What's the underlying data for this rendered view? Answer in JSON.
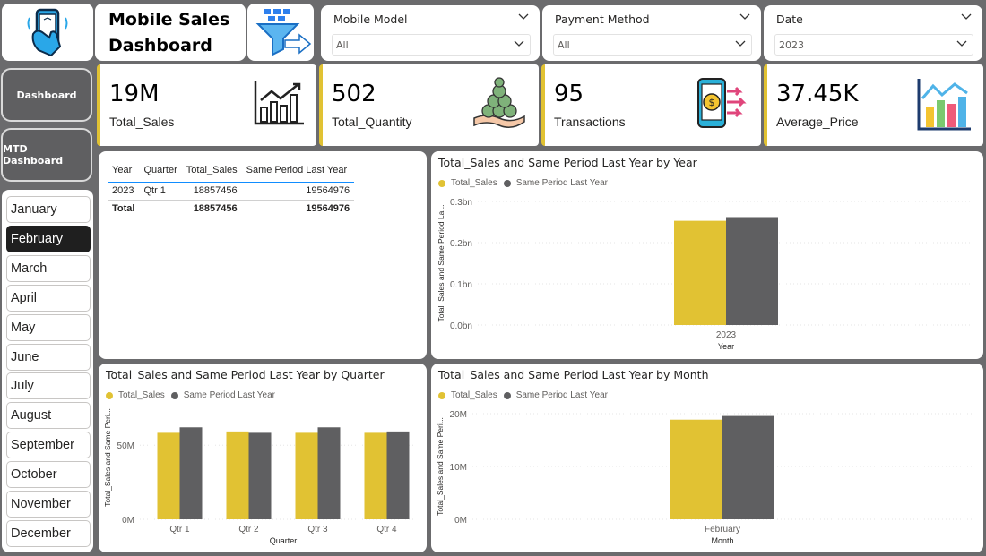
{
  "header": {
    "title_line1": "Mobile Sales",
    "title_line2": "Dashboard"
  },
  "icons": {
    "logo": "mobile-phone-hand-icon",
    "filter": "funnel-filter-icon"
  },
  "slicers": [
    {
      "title": "Mobile Model",
      "value": "All"
    },
    {
      "title": "Payment Method",
      "value": "All"
    },
    {
      "title": "Date",
      "value": "2023"
    }
  ],
  "nav": {
    "dashboard": "Dashboard",
    "mtd": "MTD Dashboard"
  },
  "months": [
    "January",
    "February",
    "March",
    "April",
    "May",
    "June",
    "July",
    "August",
    "September",
    "October",
    "November",
    "December"
  ],
  "selected_month": "February",
  "kpis": [
    {
      "value": "19M",
      "label": "Total_Sales",
      "icon": "bar-chart-up-icon"
    },
    {
      "value": "502",
      "label": "Total_Quantity",
      "icon": "coins-hand-icon"
    },
    {
      "value": "95",
      "label": "Transactions",
      "icon": "phone-payment-icon"
    },
    {
      "value": "37.45K",
      "label": "Average_Price",
      "icon": "colored-bar-chart-icon"
    }
  ],
  "table": {
    "headers": [
      "Year",
      "Quarter",
      "Total_Sales",
      "Same Period Last Year"
    ],
    "rows": [
      [
        "2023",
        "Qtr 1",
        "18857456",
        "19564976"
      ]
    ],
    "total": [
      "Total",
      "",
      "18857456",
      "19564976"
    ]
  },
  "colors": {
    "total_sales": "#e1c233",
    "same_period": "#5f5f61",
    "accent_line": "#118dff"
  },
  "charts": {
    "by_year": {
      "title": "Total_Sales and Same Period Last Year by Year",
      "legend": [
        "Total_Sales",
        "Same Period Last Year"
      ],
      "ylabel": "Total_Sales and Same Period La...",
      "xlabel": "Year",
      "yticks": [
        "0.3bn",
        "0.2bn",
        "0.1bn",
        "0.0bn"
      ]
    },
    "by_quarter": {
      "title": "Total_Sales and Same Period Last Year by Quarter",
      "legend": [
        "Total_Sales",
        "Same Period Last Year"
      ],
      "ylabel": "Total_Sales and Same Peri...",
      "xlabel": "Quarter",
      "yticks": [
        "50M",
        "0M"
      ]
    },
    "by_month": {
      "title": "Total_Sales and Same Period Last Year by Month",
      "legend": [
        "Total_Sales",
        "Same Period Last Year"
      ],
      "ylabel": "Total_Sales and Same Peri...",
      "xlabel": "Month",
      "yticks": [
        "20M",
        "10M",
        "0M"
      ]
    }
  },
  "chart_data": [
    {
      "type": "bar",
      "title": "Total_Sales and Same Period Last Year by Year",
      "categories": [
        "2023"
      ],
      "series": [
        {
          "name": "Total_Sales",
          "values": [
            0.253
          ]
        },
        {
          "name": "Same Period Last Year",
          "values": [
            0.262
          ]
        }
      ],
      "ylim": [
        0,
        0.3
      ],
      "xlabel": "Year"
    },
    {
      "type": "bar",
      "title": "Total_Sales and Same Period Last Year by Quarter",
      "categories": [
        "Qtr 1",
        "Qtr 2",
        "Qtr 3",
        "Qtr 4"
      ],
      "series": [
        {
          "name": "Total_Sales",
          "values": [
            63,
            64,
            63,
            63
          ]
        },
        {
          "name": "Same Period Last Year",
          "values": [
            67,
            63,
            67,
            64
          ]
        }
      ],
      "ylim": [
        0,
        90
      ],
      "xlabel": "Quarter"
    },
    {
      "type": "bar",
      "title": "Total_Sales and Same Period Last Year by Month",
      "categories": [
        "February"
      ],
      "series": [
        {
          "name": "Total_Sales",
          "values": [
            18.86
          ]
        },
        {
          "name": "Same Period Last Year",
          "values": [
            19.56
          ]
        }
      ],
      "ylim": [
        0,
        20
      ],
      "xlabel": "Month"
    }
  ]
}
